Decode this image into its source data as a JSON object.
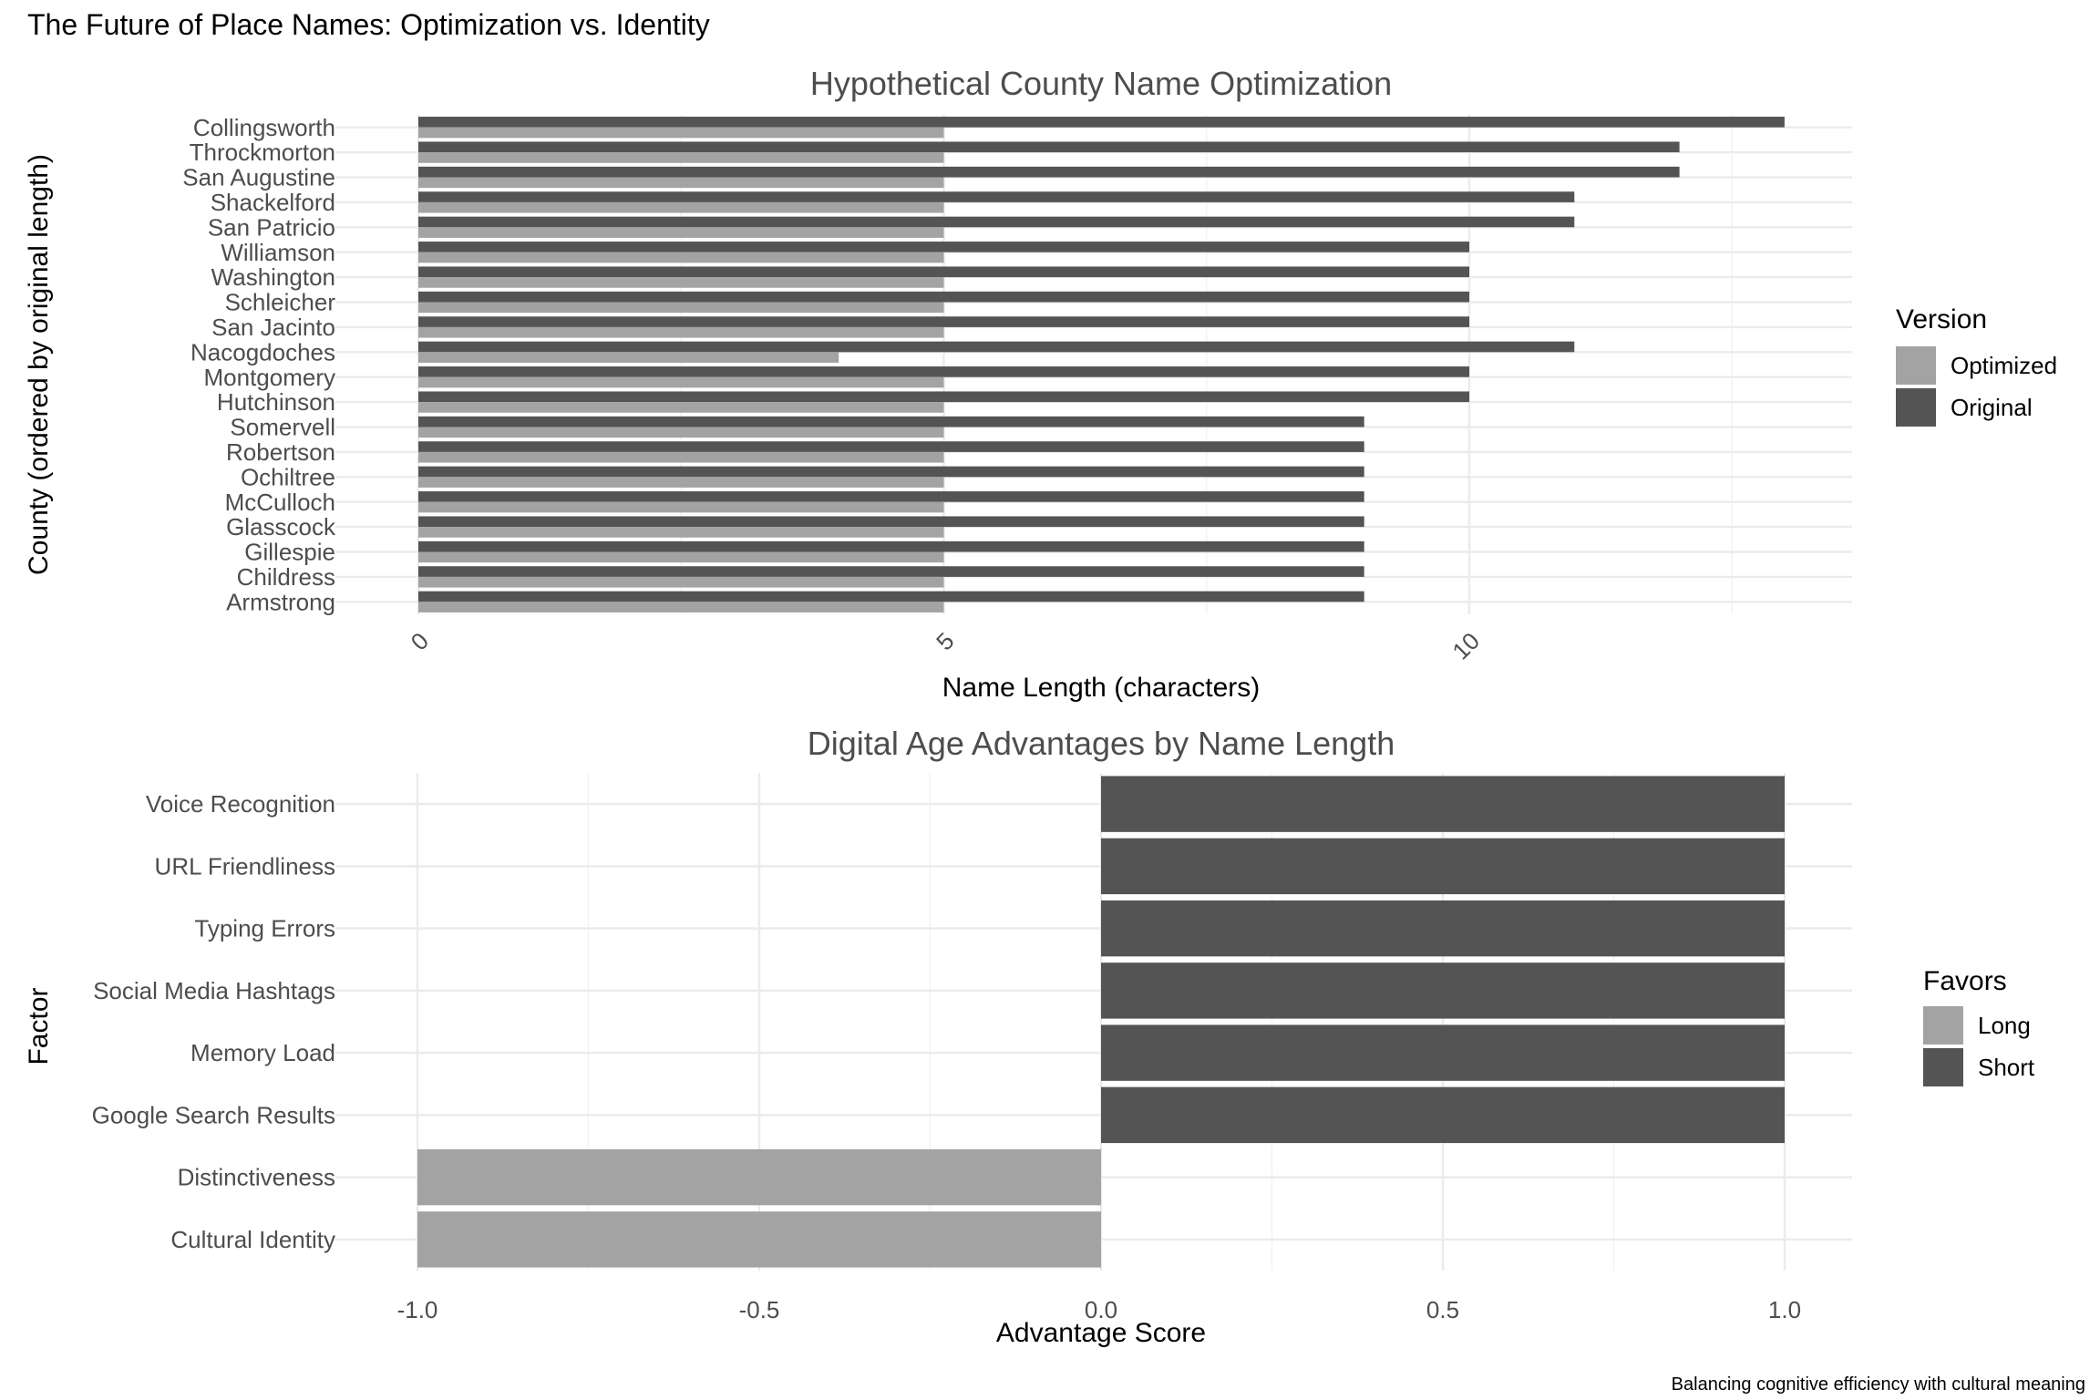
{
  "title": "The Future of Place Names: Optimization vs. Identity",
  "caption": "Balancing cognitive efficiency with cultural meaning",
  "colors": {
    "optimized": "#a3a3a3",
    "original": "#545454",
    "long": "#a3a3a3",
    "short": "#545454"
  },
  "chart_data": [
    {
      "type": "bar",
      "orientation": "horizontal",
      "title": "Hypothetical County Name Optimization",
      "xlabel": "Name Length (characters)",
      "ylabel": "County (ordered by original length)",
      "xlim": [
        0,
        13.7
      ],
      "xticks": [
        0,
        5,
        10
      ],
      "grid": true,
      "legend": {
        "title": "Version",
        "position": "right",
        "entries": [
          "Optimized",
          "Original"
        ]
      },
      "categories": [
        "Collingsworth",
        "Throckmorton",
        "San Augustine",
        "Shackelford",
        "San Patricio",
        "Williamson",
        "Washington",
        "Schleicher",
        "San Jacinto",
        "Nacogdoches",
        "Montgomery",
        "Hutchinson",
        "Somervell",
        "Robertson",
        "Ochiltree",
        "McCulloch",
        "Glasscock",
        "Gillespie",
        "Childress",
        "Armstrong"
      ],
      "series": [
        {
          "name": "Original",
          "values": [
            13,
            12,
            12,
            11,
            11,
            10,
            10,
            10,
            10,
            11,
            10,
            10,
            9,
            9,
            9,
            9,
            9,
            9,
            9,
            9
          ]
        },
        {
          "name": "Optimized",
          "values": [
            5,
            5,
            5,
            5,
            5,
            5,
            5,
            5,
            5,
            4,
            5,
            5,
            5,
            5,
            5,
            5,
            5,
            5,
            5,
            5
          ]
        }
      ]
    },
    {
      "type": "bar",
      "orientation": "horizontal",
      "title": "Digital Age Advantages by Name Length",
      "xlabel": "Advantage Score",
      "ylabel": "Factor",
      "xlim": [
        -1.1,
        1.1
      ],
      "xticks": [
        "-1.0",
        "-0.5",
        "0.0",
        "0.5",
        "1.0"
      ],
      "grid": true,
      "legend": {
        "title": "Favors",
        "position": "right",
        "entries": [
          "Long",
          "Short"
        ]
      },
      "categories": [
        "Voice Recognition",
        "URL Friendliness",
        "Typing Errors",
        "Social Media Hashtags",
        "Memory Load",
        "Google Search Results",
        "Distinctiveness",
        "Cultural Identity"
      ],
      "values": [
        1,
        1,
        1,
        1,
        1,
        1,
        -1,
        -1
      ],
      "favors": [
        "Short",
        "Short",
        "Short",
        "Short",
        "Short",
        "Short",
        "Long",
        "Long"
      ]
    }
  ]
}
